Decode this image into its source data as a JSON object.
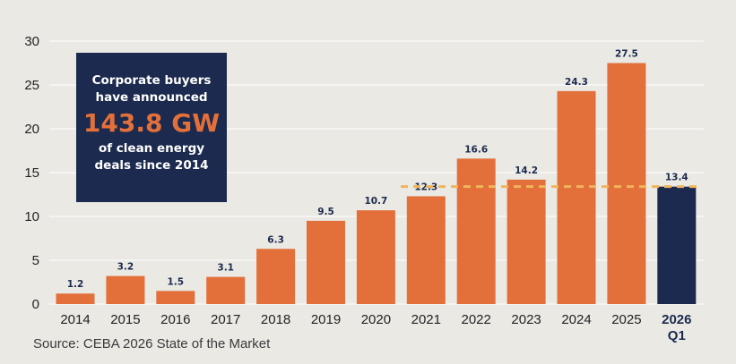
{
  "colors": {
    "bar": "#e3703a",
    "highlight_bar": "#1b2a4e",
    "reference_line": "#f0b45c",
    "callout_bg": "#1b2a4e",
    "callout_accent": "#e3703a",
    "background": "#ebe9e4"
  },
  "callout": {
    "line1": "Corporate buyers",
    "line2": "have announced",
    "value": "143.8 GW",
    "line3": "of clean energy",
    "line4": "deals since 2014"
  },
  "source": "Source: CEBA 2026 State of the Market",
  "chart_data": {
    "type": "bar",
    "categories": [
      "2014",
      "2015",
      "2016",
      "2017",
      "2018",
      "2019",
      "2020",
      "2021",
      "2022",
      "2023",
      "2024",
      "2025",
      "2026 Q1"
    ],
    "values": [
      1.2,
      3.2,
      1.5,
      3.1,
      6.3,
      9.5,
      10.7,
      12.3,
      16.6,
      14.2,
      24.3,
      27.5,
      13.4
    ],
    "data_labels": [
      "1.2",
      "3.2",
      "1.5",
      "3.1",
      "6.3",
      "9.5",
      "10.7",
      "12.3",
      "16.6",
      "14.2",
      "24.3",
      "27.5",
      "13.4"
    ],
    "highlight_category": "2026 Q1",
    "reference_line_value": 13.4,
    "ylim": [
      0,
      30
    ],
    "yticks": [
      0,
      5,
      10,
      15,
      20,
      25,
      30
    ],
    "xlabel": "",
    "ylabel": "",
    "grid": true
  }
}
